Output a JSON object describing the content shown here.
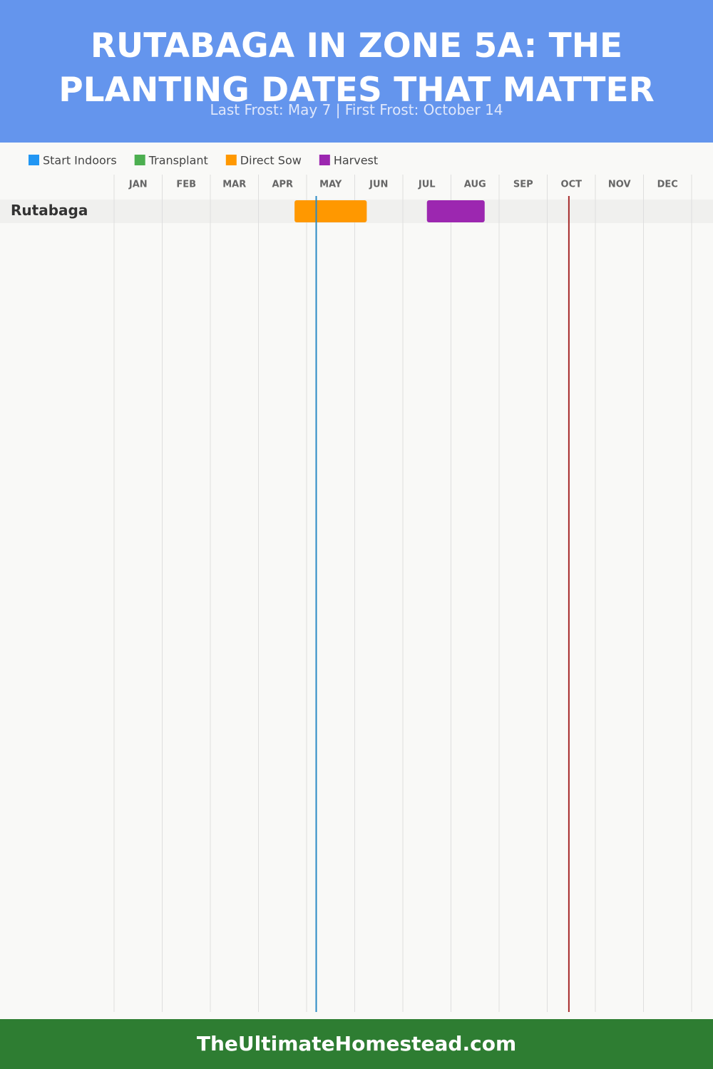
{
  "chart_data": {
    "type": "gantt",
    "title": "RUTABAGA IN ZONE 5A: THE PLANTING DATES THAT MATTER",
    "subtitle": "Last Frost: May 7 | First Frost: October 14",
    "categories": [
      "JAN",
      "FEB",
      "MAR",
      "APR",
      "MAY",
      "JUN",
      "JUL",
      "AUG",
      "SEP",
      "OCT",
      "NOV",
      "DEC"
    ],
    "xlim": [
      0,
      12
    ],
    "grid": true,
    "rows": [
      "Rutabaga"
    ],
    "series": [
      {
        "name": "Start Indoors",
        "color": "#2196f3",
        "ranges": [
          null
        ]
      },
      {
        "name": "Transplant",
        "color": "#4caf50",
        "ranges": [
          null
        ]
      },
      {
        "name": "Direct Sow",
        "color": "#ff9800",
        "ranges": [
          [
            3.75,
            5.25
          ]
        ]
      },
      {
        "name": "Harvest",
        "color": "#9c27b0",
        "ranges": [
          [
            6.5,
            7.7
          ]
        ]
      }
    ],
    "frost_lines": [
      {
        "value": 4.2,
        "color": "#2a8ac4"
      },
      {
        "value": 9.45,
        "color": "#a52a2a"
      }
    ],
    "footer": "TheUltimateHomestead.com"
  }
}
